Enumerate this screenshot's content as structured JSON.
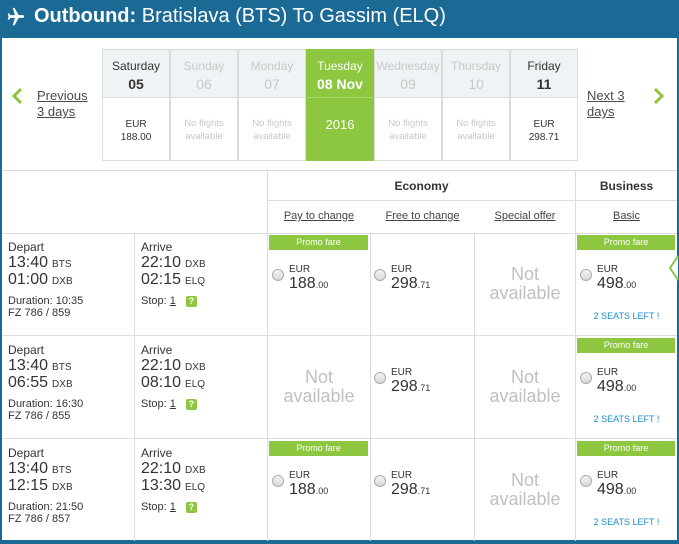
{
  "header": {
    "direction": "Outbound:",
    "route": "Bratislava (BTS) To Gassim (ELQ)"
  },
  "date_nav": {
    "prev_label_1": "Previous",
    "prev_label_2": "3 days",
    "next_label_1": "Next 3",
    "next_label_2": "days",
    "days": [
      {
        "name": "Saturday",
        "num": "05",
        "line1": "EUR",
        "line2": "188.00",
        "state": "available"
      },
      {
        "name": "Sunday",
        "num": "06",
        "line1": "No flights",
        "line2": "available",
        "state": "disabled"
      },
      {
        "name": "Monday",
        "num": "07",
        "line1": "No flights",
        "line2": "available",
        "state": "disabled"
      },
      {
        "name": "Tuesday",
        "num": "08 Nov",
        "line1": "2016",
        "line2": "",
        "state": "selected"
      },
      {
        "name": "Wednesday",
        "num": "09",
        "line1": "No flights",
        "line2": "available",
        "state": "disabled"
      },
      {
        "name": "Thursday",
        "num": "10",
        "line1": "No flights",
        "line2": "available",
        "state": "disabled"
      },
      {
        "name": "Friday",
        "num": "11",
        "line1": "EUR",
        "line2": "298.71",
        "state": "available"
      }
    ]
  },
  "columns": {
    "economy": "Economy",
    "business": "Business",
    "pay_to_change": "Pay to change",
    "free_to_change": "Free to change",
    "special_offer": "Special offer",
    "basic": "Basic"
  },
  "labels": {
    "depart": "Depart",
    "arrive": "Arrive",
    "duration_prefix": "Duration: ",
    "stop_prefix": "Stop: ",
    "promo": "Promo fare",
    "not": "Not",
    "available": "available",
    "currency": "EUR",
    "help": "?"
  },
  "flights": [
    {
      "dep_time": "13:40",
      "dep_code": "BTS",
      "conn_dep_time": "01:00",
      "conn_dep_code": "DXB",
      "arr_time_1": "22:10",
      "arr_code_1": "DXB",
      "arr_time_2": "02:15",
      "arr_code_2": "ELQ",
      "duration": "10:35",
      "flight_no": "FZ 786 / 859",
      "stops": "1",
      "pay_promo": true,
      "pay_int": "188",
      "pay_dec": ".00",
      "free_int": "298",
      "free_dec": ".71",
      "biz_int": "498",
      "biz_dec": ".00",
      "seats": "2 SEATS LEFT !"
    },
    {
      "dep_time": "13:40",
      "dep_code": "BTS",
      "conn_dep_time": "06:55",
      "conn_dep_code": "DXB",
      "arr_time_1": "22:10",
      "arr_code_1": "DXB",
      "arr_time_2": "08:10",
      "arr_code_2": "ELQ",
      "duration": "16:30",
      "flight_no": "FZ 786 / 855",
      "stops": "1",
      "pay_promo": false,
      "pay_int": "",
      "pay_dec": "",
      "free_int": "298",
      "free_dec": ".71",
      "biz_int": "498",
      "biz_dec": ".00",
      "seats": "2 SEATS LEFT !"
    },
    {
      "dep_time": "13:40",
      "dep_code": "BTS",
      "conn_dep_time": "12:15",
      "conn_dep_code": "DXB",
      "arr_time_1": "22:10",
      "arr_code_1": "DXB",
      "arr_time_2": "13:30",
      "arr_code_2": "ELQ",
      "duration": "21:50",
      "flight_no": "FZ 786 / 857",
      "stops": "1",
      "pay_promo": true,
      "pay_int": "188",
      "pay_dec": ".00",
      "free_int": "298",
      "free_dec": ".71",
      "biz_int": "498",
      "biz_dec": ".00",
      "seats": "2 SEATS LEFT !"
    }
  ],
  "colors": {
    "brand_blue": "#1b6a96",
    "promo_green": "#8dc63f",
    "seats_blue": "#1b8cc8"
  }
}
